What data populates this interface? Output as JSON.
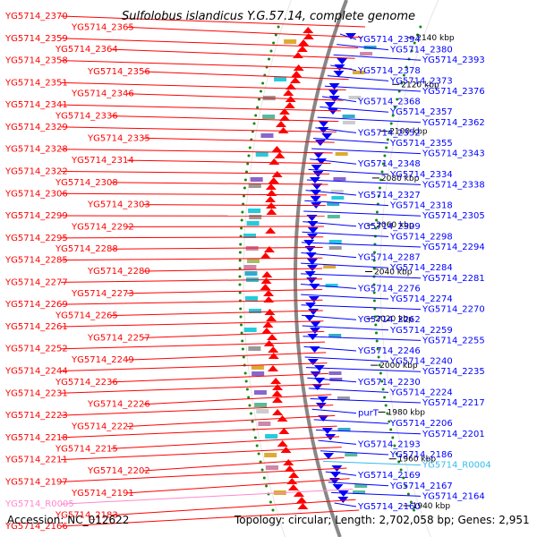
{
  "title": "Sulfolobus islandicus Y.G.57.14, complete genome",
  "footer": {
    "accession": "Accession: NC_012622",
    "topology": "Topology: circular; Length: 2,702,058 bp; Genes: 2,951"
  },
  "colors": {
    "forward": "#ff0000",
    "reverse": "#0000ff",
    "rna_left": "#ff88cc",
    "rna_right": "#33bbee",
    "backbone": "#888888",
    "tick": "#118811"
  },
  "kbp_ticks": [
    {
      "label": "2140 kbp",
      "pos": 2140
    },
    {
      "label": "2120 kbp",
      "pos": 2120
    },
    {
      "label": "2100 kbp",
      "pos": 2100
    },
    {
      "label": "2080 kbp",
      "pos": 2080
    },
    {
      "label": "2060 kbp",
      "pos": 2060
    },
    {
      "label": "2040 kbp",
      "pos": 2040
    },
    {
      "label": "2020 kbp",
      "pos": 2020
    },
    {
      "label": "2000 kbp",
      "pos": 2000
    },
    {
      "label": "1980 kbp",
      "pos": 1980
    },
    {
      "label": "1960 kbp",
      "pos": 1960
    },
    {
      "label": "1940 kbp",
      "pos": 1940
    }
  ],
  "left_labels": [
    "YG5714_2370",
    "YG5714_2365",
    "YG5714_2359",
    "YG5714_2364",
    "YG5714_2358",
    "YG5714_2356",
    "YG5714_2351",
    "YG5714_2346",
    "YG5714_2341",
    "YG5714_2336",
    "YG5714_2329",
    "YG5714_2335",
    "YG5714_2328",
    "YG5714_2314",
    "YG5714_2322",
    "YG5714_2308",
    "YG5714_2306",
    "YG5714_2303",
    "YG5714_2299",
    "YG5714_2292",
    "YG5714_2295",
    "YG5714_2288",
    "YG5714_2285",
    "YG5714_2280",
    "YG5714_2277",
    "YG5714_2273",
    "YG5714_2269",
    "YG5714_2265",
    "YG5714_2261",
    "YG5714_2257",
    "YG5714_2252",
    "YG5714_2249",
    "YG5714_2244",
    "YG5714_2236",
    "YG5714_2231",
    "YG5714_2226",
    "YG5714_2223",
    "YG5714_2222",
    "YG5714_2218",
    "YG5714_2215",
    "YG5714_2211",
    "YG5714_2202",
    "YG5714_2197",
    "YG5714_2191",
    "YG5714_R0005",
    "YG5714_2183",
    "YG5714_2166"
  ],
  "right_labels": [
    "YG5714_2394",
    "YG5714_2380",
    "YG5714_2393",
    "YG5714_2378",
    "YG5714_2373",
    "YG5714_2376",
    "YG5714_2368",
    "YG5714_2357",
    "YG5714_2362",
    "YG5714_2352",
    "YG5714_2355",
    "YG5714_2343",
    "YG5714_2348",
    "YG5714_2334",
    "YG5714_2338",
    "YG5714_2327",
    "YG5714_2318",
    "YG5714_2305",
    "YG5714_2309",
    "YG5714_2298",
    "YG5714_2294",
    "YG5714_2287",
    "YG5714_2284",
    "YG5714_2281",
    "YG5714_2276",
    "YG5714_2274",
    "YG5714_2270",
    "YG5714_2262",
    "YG5714_2259",
    "YG5714_2255",
    "YG5714_2246",
    "YG5714_2240",
    "YG5714_2235",
    "YG5714_2230",
    "YG5714_2224",
    "YG5714_2217",
    "purT",
    "YG5714_2206",
    "YG5714_2201",
    "YG5714_2193",
    "YG5714_2186",
    "YG5714_R0004",
    "YG5714_2169",
    "YG5714_2167",
    "YG5714_2164",
    "YG5714_2160"
  ]
}
